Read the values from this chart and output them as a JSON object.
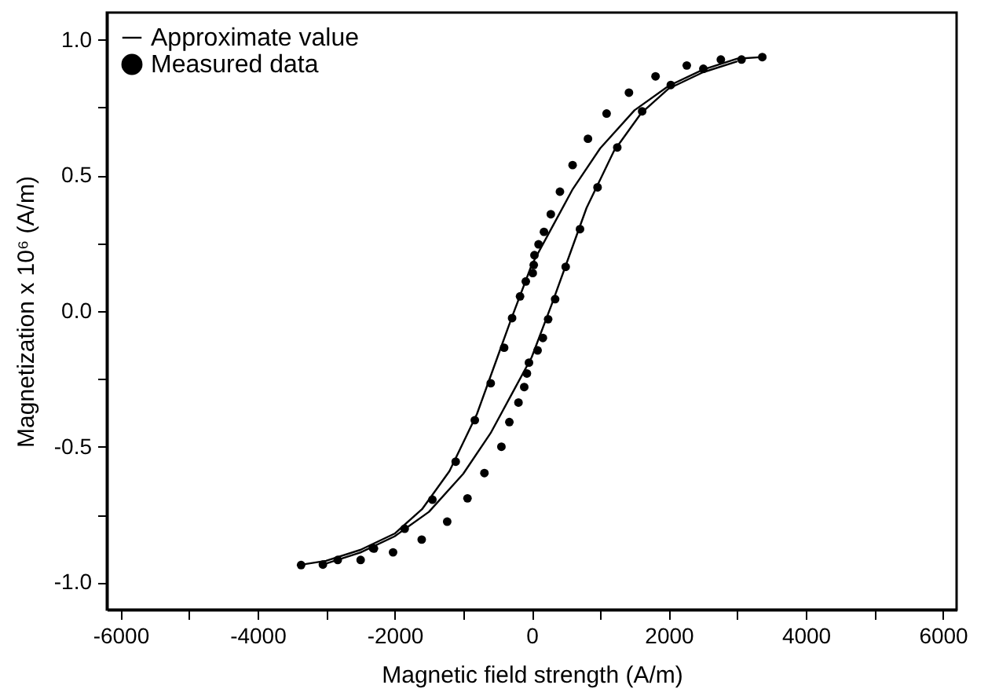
{
  "chart_data": {
    "type": "scatter",
    "xlabel": "Magnetic field strength (A/m)",
    "ylabel": "Magnetization x 10⁶ (A/m)",
    "xlim": [
      -6200,
      6200
    ],
    "ylim": [
      -1.1,
      1.1
    ],
    "xticks": [
      -6000,
      {
        "value": -5000,
        "label": null
      },
      -4000,
      {
        "value": -3000,
        "label": null
      },
      -2000,
      {
        "value": -1000,
        "label": null
      },
      0,
      {
        "value": 1000,
        "label": null
      },
      2000,
      {
        "value": 3000,
        "label": null
      },
      4000,
      {
        "value": 5000,
        "label": null
      },
      6000
    ],
    "yticks": [
      {
        "value": -1,
        "label": "-1.0"
      },
      {
        "value": -0.75,
        "label": null
      },
      {
        "value": -0.5,
        "label": "-0.5"
      },
      {
        "value": -0.25,
        "label": null
      },
      {
        "value": 0,
        "label": "0.0"
      },
      {
        "value": 0.25,
        "label": null
      },
      {
        "value": 0.5,
        "label": "0.5"
      },
      {
        "value": 0.75,
        "label": null
      },
      {
        "value": 1,
        "label": "1.0"
      }
    ],
    "grid": false,
    "legend": "top left",
    "series": [
      {
        "name": "Approximate value",
        "type": "line",
        "color": "#000000",
        "line_style": "solid",
        "x": [
          3365,
          3000,
          2500,
          2000,
          1500,
          1000,
          600,
          300,
          0,
          -300,
          -500,
          -800,
          -1200,
          -1600,
          -2000,
          -2500,
          -3000,
          -3400
        ],
        "values": [
          0.936,
          0.93,
          0.89,
          0.83,
          0.74,
          0.6,
          0.45,
          0.31,
          0.17,
          -0.03,
          -0.17,
          -0.38,
          -0.59,
          -0.73,
          -0.82,
          -0.88,
          -0.92,
          -0.936
        ]
      },
      {
        "type": "line",
        "color": "#000000",
        "line_style": "solid",
        "x": [
          -3000,
          -2500,
          -2000,
          -1500,
          -1000,
          -600,
          -300,
          0,
          300,
          500,
          800,
          1200,
          1600,
          2000,
          2500,
          3000
        ],
        "values": [
          -0.93,
          -0.89,
          -0.83,
          -0.74,
          -0.6,
          -0.45,
          -0.31,
          -0.17,
          0.03,
          0.17,
          0.38,
          0.59,
          0.73,
          0.82,
          0.88,
          0.92
        ]
      },
      {
        "name": "Measured data",
        "color": "#000000",
        "marker": "circle",
        "x": [
          3365,
          3062,
          2760,
          2505,
          2263,
          2030,
          1807,
          1612,
          1419,
          1249,
          1093,
          961,
          821,
          705,
          597,
          496,
          412,
          342,
          279,
          240,
          179,
          100,
          40,
          30,
          15,
          -86,
          -170,
          -286,
          163,
          86,
          -40,
          -70,
          -109,
          -193,
          -326,
          -442,
          -402,
          -598,
          -830,
          -1109,
          -1449,
          -1853,
          -2302,
          -2830,
          -3365,
          -690,
          -937,
          -1233,
          -1605,
          -2023,
          -2318,
          -2496,
          -3047
        ],
        "values": [
          0.936,
          0.927,
          0.927,
          0.893,
          0.905,
          0.833,
          0.865,
          0.736,
          0.805,
          0.603,
          0.728,
          0.456,
          0.635,
          0.302,
          0.538,
          0.163,
          0.44,
          0.044,
          0.357,
          -0.03,
          0.292,
          0.246,
          0.206,
          0.17,
          0.14,
          0.109,
          0.054,
          -0.026,
          -0.099,
          -0.145,
          -0.19,
          -0.23,
          -0.28,
          -0.337,
          -0.409,
          -0.5,
          -0.135,
          -0.266,
          -0.402,
          -0.555,
          -0.695,
          -0.802,
          -0.875,
          -0.917,
          -0.936,
          -0.597,
          -0.69,
          -0.776,
          -0.842,
          -0.889,
          -0.873,
          -0.917,
          -0.934
        ]
      }
    ]
  }
}
